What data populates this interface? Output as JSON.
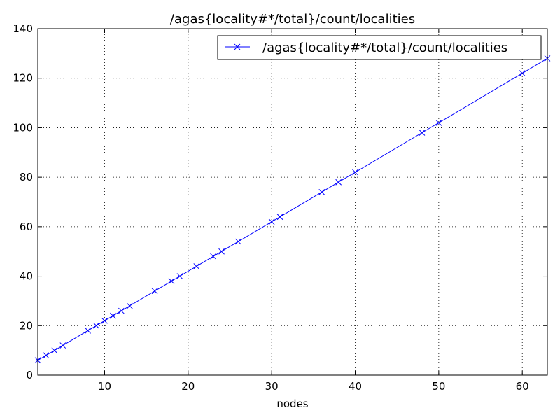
{
  "chart_data": {
    "type": "line",
    "title": "/agas{locality#*/total}/count/localities",
    "xlabel": "nodes",
    "ylabel": "",
    "xlim": [
      2,
      63
    ],
    "ylim": [
      0,
      140
    ],
    "x_ticks": [
      10,
      20,
      30,
      40,
      50,
      60
    ],
    "y_ticks": [
      0,
      20,
      40,
      60,
      80,
      100,
      120,
      140
    ],
    "grid": true,
    "legend_position": "top-right",
    "series": [
      {
        "name": "/agas{locality#*/total}/count/localities",
        "color": "#0000ff",
        "marker": "x",
        "x": [
          2,
          3,
          4,
          5,
          8,
          9,
          10,
          11,
          12,
          13,
          16,
          18,
          19,
          21,
          23,
          24,
          26,
          30,
          31,
          36,
          38,
          40,
          48,
          50,
          60,
          63
        ],
        "y": [
          6,
          8,
          10,
          12,
          18,
          20,
          22,
          24,
          26,
          28,
          34,
          38,
          40,
          44,
          48,
          50,
          54,
          62,
          64,
          74,
          78,
          82,
          98,
          102,
          122,
          128
        ]
      }
    ]
  }
}
